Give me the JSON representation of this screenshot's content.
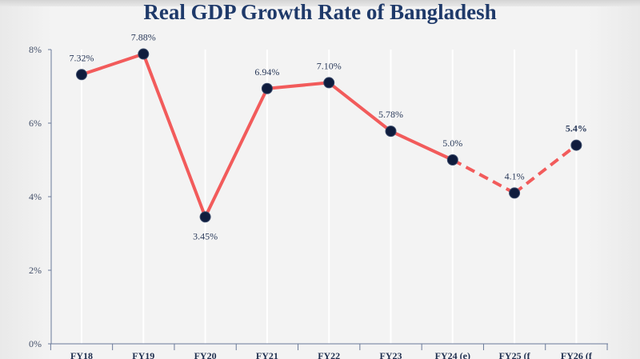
{
  "chart_data": {
    "type": "line",
    "title": "Real GDP Growth Rate of Bangladesh",
    "categories": [
      "FY18",
      "FY19",
      "FY20",
      "FY21",
      "FY22",
      "FY23",
      "FY24 (e)",
      "FY25 (f",
      "FY26 (f"
    ],
    "values": [
      7.32,
      7.88,
      3.45,
      6.94,
      7.1,
      5.78,
      5.0,
      4.1,
      5.4
    ],
    "data_labels": [
      "7.32%",
      "7.88%",
      "3.45%",
      "6.94%",
      "7.10%",
      "5.78%",
      "5.0%",
      "4.1%",
      "5.4%"
    ],
    "label_bold": [
      false,
      false,
      false,
      false,
      false,
      false,
      false,
      false,
      true
    ],
    "label_position": [
      "above",
      "above",
      "below",
      "above",
      "above",
      "above",
      "above",
      "above",
      "above"
    ],
    "dashed_from_index": 6,
    "ylim": [
      0,
      8
    ],
    "y_ticks": [
      0,
      2,
      4,
      6,
      8
    ],
    "y_tick_labels": [
      "0%",
      "2%",
      "4%",
      "6%",
      "8%"
    ],
    "xlabel": "",
    "ylabel": "",
    "grid": "vertical",
    "legend": "none",
    "colors": {
      "line": "#f25b5b",
      "marker": "#0f1c3d",
      "title": "#1f3a6a",
      "axis": "#6a7a9a",
      "grid": "#ffffff"
    }
  }
}
